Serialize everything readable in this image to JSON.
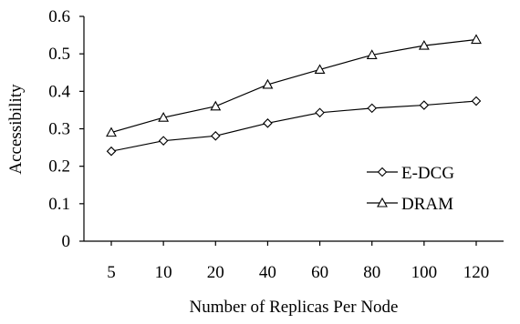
{
  "chart_data": {
    "type": "line",
    "title": "",
    "xlabel": "Number of Replicas Per Node",
    "ylabel": "Accessibility",
    "categories": [
      "5",
      "10",
      "20",
      "40",
      "60",
      "80",
      "100",
      "120"
    ],
    "ylim": [
      0,
      0.6
    ],
    "yticks": [
      "0",
      "0.1",
      "0.2",
      "0.3",
      "0.4",
      "0.5",
      "0.6"
    ],
    "grid": false,
    "legend_position": "right",
    "series": [
      {
        "name": "E-DCG",
        "marker": "diamond",
        "values": [
          0.24,
          0.268,
          0.281,
          0.315,
          0.343,
          0.355,
          0.363,
          0.374
        ]
      },
      {
        "name": "DRAM",
        "marker": "triangle",
        "values": [
          0.29,
          0.33,
          0.36,
          0.418,
          0.458,
          0.497,
          0.522,
          0.538
        ]
      }
    ]
  }
}
